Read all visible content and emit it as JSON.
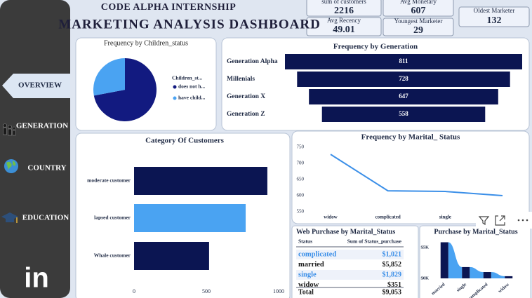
{
  "header": {
    "org": "CODE ALPHA INTERNSHIP",
    "title": "MARKETING ANALYSIS DASHBOARD"
  },
  "sidebar": {
    "nav": [
      "OVERVIEW",
      "GENERATION",
      "COUNTRY",
      "EDUCATION"
    ],
    "logo": "in"
  },
  "kpis": [
    {
      "label": "sum of customers",
      "value": 2216
    },
    {
      "label": "Avg Monetary",
      "value": 607
    },
    {
      "label": "Avg Recency",
      "value": 49.01
    },
    {
      "label": "Youngest Marketer",
      "value": 29
    },
    {
      "label": "Oldest Marketer",
      "value": 132
    }
  ],
  "chart_data": [
    {
      "type": "pie",
      "title": "Frequency by Children_status",
      "legend_title": "Children_st...",
      "categories": [
        "does not h...",
        "have child..."
      ],
      "values": [
        72,
        28
      ],
      "colors": [
        "#121a80",
        "#4aa3f2"
      ]
    },
    {
      "type": "funnel",
      "title": "Frequency by Generation",
      "categories": [
        "Generation Alpha",
        "Millenials",
        "Generation X",
        "Generation Z"
      ],
      "values": [
        811,
        728,
        647,
        558
      ],
      "color": "#0b1552"
    },
    {
      "type": "hbar",
      "title": "Category Of Customers",
      "categories": [
        "moderate customer",
        "lapsed customer",
        "Whale customer"
      ],
      "values": [
        922,
        772,
        519
      ],
      "colors": [
        "#0b1552",
        "#4aa3f2",
        "#0b1552"
      ],
      "xlim": [
        0,
        1000
      ],
      "xticks": [
        0,
        500,
        1000
      ]
    },
    {
      "type": "line",
      "title": "Frequency by Marital_ Status",
      "categories": [
        "widow",
        "complicated",
        "single",
        null
      ],
      "values": [
        728,
        615,
        613,
        600
      ],
      "color": "#3b8fe8",
      "ylim": [
        540,
        760
      ],
      "yticks": [
        550,
        600,
        650,
        700,
        750
      ]
    },
    {
      "type": "ribbon",
      "title": "Purchase by Marital_Status",
      "categories": [
        "married",
        "single",
        "complicated",
        "widow"
      ],
      "values": [
        5852,
        1829,
        1021,
        351
      ],
      "color": "#0b1552",
      "ribbon_color": "#4aa3f2",
      "ylim": [
        0,
        6000
      ],
      "yticks": [
        {
          "value": 5000,
          "label": "$5K"
        },
        {
          "value": 0,
          "label": "$0K"
        }
      ]
    }
  ],
  "table": {
    "title": "Web Purchase by Marital_Status",
    "columns": [
      "Status",
      "Sum of Status_purchase"
    ],
    "rows": [
      [
        "complicated",
        "$1,021"
      ],
      [
        "married",
        "$5,852"
      ],
      [
        "single",
        "$1,829"
      ],
      [
        "widow",
        "$351"
      ]
    ],
    "total": [
      "Total",
      "$9,053"
    ]
  }
}
